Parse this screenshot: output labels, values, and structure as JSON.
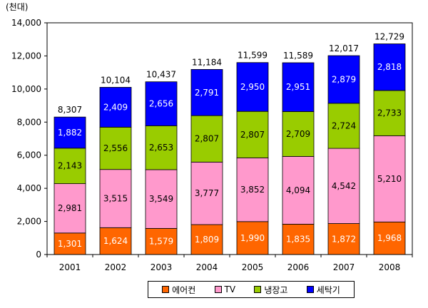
{
  "chart_data": {
    "type": "bar",
    "stacked": true,
    "unit_label": "(천대)",
    "categories": [
      "2001",
      "2002",
      "2003",
      "2004",
      "2005",
      "2006",
      "2007",
      "2008"
    ],
    "series": [
      {
        "name": "에어컨",
        "color": "#FF6600",
        "values": [
          1301,
          1624,
          1579,
          1809,
          1990,
          1835,
          1872,
          1968
        ]
      },
      {
        "name": "TV",
        "color": "#FF99CC",
        "values": [
          2981,
          3515,
          3549,
          3777,
          3852,
          4094,
          4542,
          5210
        ]
      },
      {
        "name": "냉장고",
        "color": "#99CC00",
        "values": [
          2143,
          2556,
          2653,
          2807,
          2807,
          2709,
          2724,
          2733
        ]
      },
      {
        "name": "세탁기",
        "color": "#0000FF",
        "values": [
          1882,
          2409,
          2656,
          2791,
          2950,
          2951,
          2879,
          2818
        ]
      }
    ],
    "totals": [
      8307,
      10104,
      10437,
      11184,
      11599,
      11589,
      12017,
      12729
    ],
    "labels": {
      "series": [
        [
          "1,301",
          "1,624",
          "1,579",
          "1,809",
          "1,990",
          "1,835",
          "1,872",
          "1,968"
        ],
        [
          "2,981",
          "3,515",
          "3,549",
          "3,777",
          "3,852",
          "4,094",
          "4,542",
          "5,210"
        ],
        [
          "2,143",
          "2,556",
          "2,653",
          "2,807",
          "2,807",
          "2,709",
          "2,724",
          "2,733"
        ],
        [
          "1,882",
          "2,409",
          "2,656",
          "2,791",
          "2,950",
          "2,951",
          "2,879",
          "2,818"
        ]
      ],
      "totals": [
        "8,307",
        "10,104",
        "10,437",
        "11,184",
        "11,599",
        "11,589",
        "12,017",
        "12,729"
      ]
    },
    "ylim": [
      0,
      14000
    ],
    "yticks": [
      0,
      2000,
      4000,
      6000,
      8000,
      10000,
      12000,
      14000
    ],
    "ytick_labels": [
      "0",
      "2,000",
      "4,000",
      "6,000",
      "8,000",
      "10,000",
      "12,000",
      "14,000"
    ],
    "grid": false,
    "legend_position": "bottom"
  }
}
